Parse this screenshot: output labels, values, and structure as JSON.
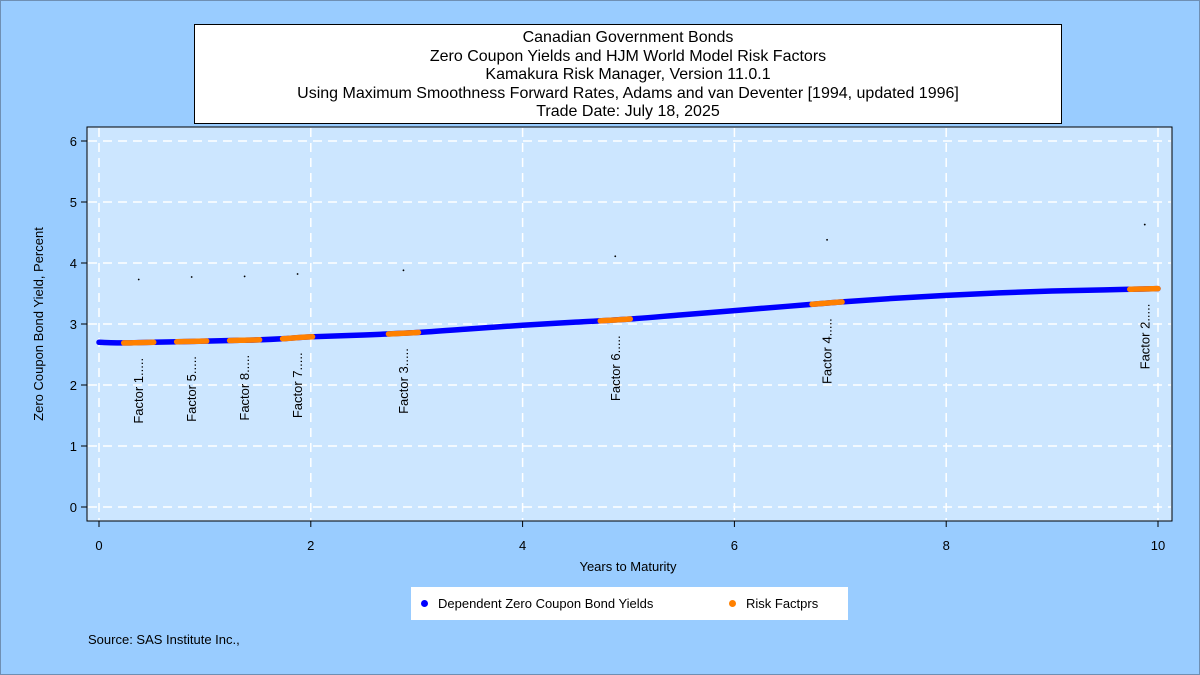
{
  "colors": {
    "page_background": "#99ccff",
    "plot_background": "#cce6ff",
    "grid": "#ffffff",
    "curve": "#0000ff",
    "risk_factor": "#ff8000"
  },
  "chart_data": {
    "type": "line",
    "title": "Canadian Government Bonds",
    "subtitle_lines": [
      "Zero Coupon Yields and HJM World Model Risk Factors",
      "Kamakura Risk Manager, Version 11.0.1",
      "Using Maximum Smoothness Forward Rates, Adams and van Deventer [1994, updated 1996]",
      "Trade Date: July 18, 2025"
    ],
    "xlabel": "Years to Maturity",
    "ylabel": "Zero Coupon Bond Yield, Percent",
    "xlim": [
      0,
      10
    ],
    "ylim": [
      0,
      6
    ],
    "xticks": [
      "0",
      "2",
      "4",
      "6",
      "8",
      "10"
    ],
    "yticks": [
      "0",
      "1",
      "2",
      "3",
      "4",
      "5",
      "6"
    ],
    "grid": true,
    "legend_position": "bottom",
    "series": [
      {
        "name": "Dependent Zero Coupon Bond Yields",
        "color": "#0000ff",
        "x": [
          0,
          0.25,
          0.5,
          0.75,
          1.0,
          1.25,
          1.5,
          1.75,
          2.0,
          2.5,
          3.0,
          3.5,
          4.0,
          4.5,
          5.0,
          5.5,
          6.0,
          6.5,
          7.0,
          7.5,
          8.0,
          8.5,
          9.0,
          9.5,
          10.0
        ],
        "y": [
          2.7,
          2.69,
          2.7,
          2.71,
          2.72,
          2.73,
          2.74,
          2.76,
          2.79,
          2.82,
          2.86,
          2.92,
          2.98,
          3.03,
          3.08,
          3.15,
          3.22,
          3.29,
          3.36,
          3.42,
          3.47,
          3.51,
          3.54,
          3.56,
          3.58
        ]
      },
      {
        "name": "Risk Factprs",
        "color": "#ff8000",
        "points": [
          {
            "label": "Factor 1.....",
            "x": 0.375,
            "y": 2.69
          },
          {
            "label": "Factor 5.....",
            "x": 0.875,
            "y": 2.72
          },
          {
            "label": "Factor 8.....",
            "x": 1.375,
            "y": 2.74
          },
          {
            "label": "Factor 7.....",
            "x": 1.875,
            "y": 2.78
          },
          {
            "label": "Factor 3.....",
            "x": 2.875,
            "y": 2.85
          },
          {
            "label": "Factor 6.....",
            "x": 4.875,
            "y": 3.06
          },
          {
            "label": "Factor 4.....",
            "x": 6.875,
            "y": 3.34
          },
          {
            "label": "Factor 2.....",
            "x": 9.875,
            "y": 3.58
          }
        ]
      }
    ],
    "dots": [
      {
        "x": 0.375,
        "y": 3.73
      },
      {
        "x": 0.875,
        "y": 3.77
      },
      {
        "x": 1.375,
        "y": 3.78
      },
      {
        "x": 1.875,
        "y": 3.82
      },
      {
        "x": 2.875,
        "y": 3.88
      },
      {
        "x": 4.875,
        "y": 4.11
      },
      {
        "x": 6.875,
        "y": 4.38
      },
      {
        "x": 9.875,
        "y": 4.63
      }
    ]
  },
  "legend": {
    "curve_label": "Dependent Zero Coupon Bond Yields",
    "factor_label": "Risk Factprs"
  },
  "footer": {
    "source": "Source: SAS Institute Inc.,"
  }
}
